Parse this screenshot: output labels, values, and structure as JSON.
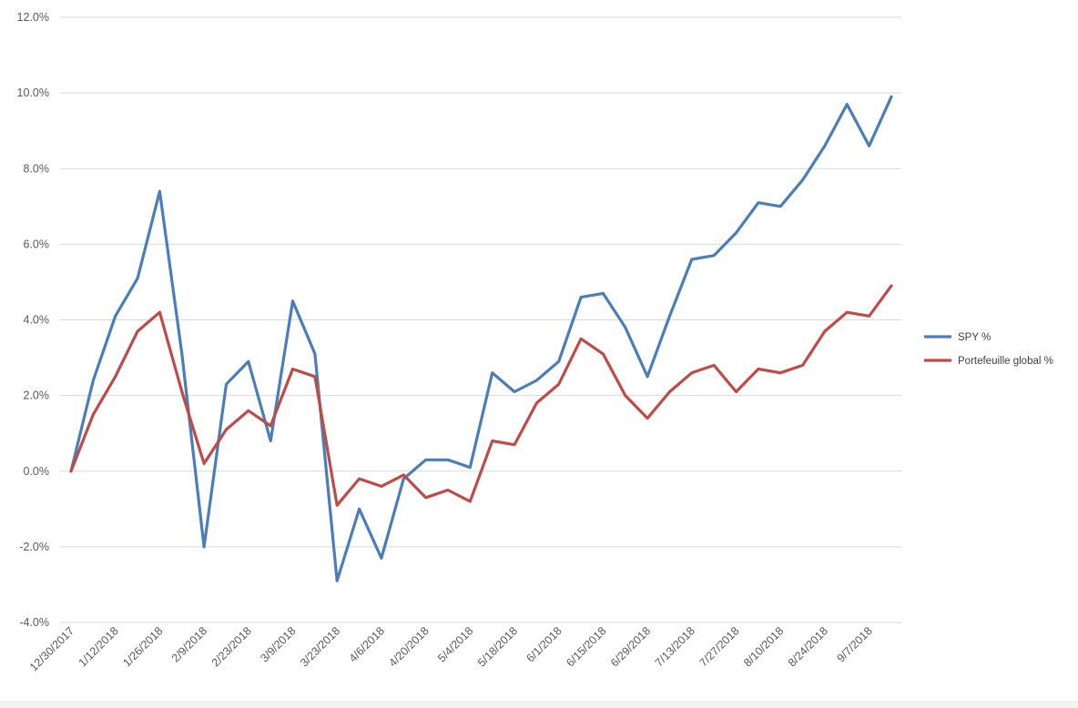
{
  "chart_data": {
    "type": "line",
    "title": "",
    "xlabel": "",
    "ylabel": "",
    "ylim": [
      -0.04,
      0.12
    ],
    "y_ticks": [
      "-4.0%",
      "-2.0%",
      "0.0%",
      "2.0%",
      "4.0%",
      "6.0%",
      "8.0%",
      "10.0%",
      "12.0%"
    ],
    "grid": "horizontal",
    "legend_position": "right",
    "x": [
      "12/30/2017",
      "1/5/2018",
      "1/12/2018",
      "1/19/2018",
      "1/26/2018",
      "2/2/2018",
      "2/9/2018",
      "2/16/2018",
      "2/23/2018",
      "3/2/2018",
      "3/9/2018",
      "3/16/2018",
      "3/23/2018",
      "3/30/2018",
      "4/6/2018",
      "4/13/2018",
      "4/20/2018",
      "4/27/2018",
      "5/4/2018",
      "5/11/2018",
      "5/18/2018",
      "5/25/2018",
      "6/1/2018",
      "6/8/2018",
      "6/15/2018",
      "6/22/2018",
      "6/29/2018",
      "7/6/2018",
      "7/13/2018",
      "7/20/2018",
      "7/27/2018",
      "8/3/2018",
      "8/10/2018",
      "8/17/2018",
      "8/24/2018",
      "8/31/2018",
      "9/7/2018",
      "9/14/2018"
    ],
    "x_tick_labels": [
      "12/30/2017",
      "1/12/2018",
      "1/26/2018",
      "2/9/2018",
      "2/23/2018",
      "3/9/2018",
      "3/23/2018",
      "4/6/2018",
      "4/20/2018",
      "5/4/2018",
      "5/18/2018",
      "6/1/2018",
      "6/15/2018",
      "6/29/2018",
      "7/13/2018",
      "7/27/2018",
      "8/10/2018",
      "8/24/2018",
      "9/7/2018"
    ],
    "series": [
      {
        "name": "SPY %",
        "color": "#4a7ebb",
        "values": [
          0.0,
          0.024,
          0.041,
          0.051,
          0.074,
          0.031,
          -0.02,
          0.023,
          0.029,
          0.008,
          0.045,
          0.031,
          -0.029,
          -0.01,
          -0.023,
          -0.002,
          0.003,
          0.003,
          0.001,
          0.026,
          0.021,
          0.024,
          0.029,
          0.046,
          0.047,
          0.038,
          0.025,
          0.041,
          0.056,
          0.057,
          0.063,
          0.071,
          0.07,
          0.077,
          0.086,
          0.097,
          0.086,
          0.099
        ]
      },
      {
        "name": "Portefeuille global %",
        "color": "#be4b48",
        "values": [
          0.0,
          0.015,
          0.025,
          0.037,
          0.042,
          0.021,
          0.002,
          0.011,
          0.016,
          0.012,
          0.027,
          0.025,
          -0.009,
          -0.002,
          -0.004,
          -0.001,
          -0.007,
          -0.005,
          -0.008,
          0.008,
          0.007,
          0.018,
          0.023,
          0.035,
          0.031,
          0.02,
          0.014,
          0.021,
          0.026,
          0.028,
          0.021,
          0.027,
          0.026,
          0.028,
          0.037,
          0.042,
          0.041,
          0.049
        ]
      }
    ]
  }
}
